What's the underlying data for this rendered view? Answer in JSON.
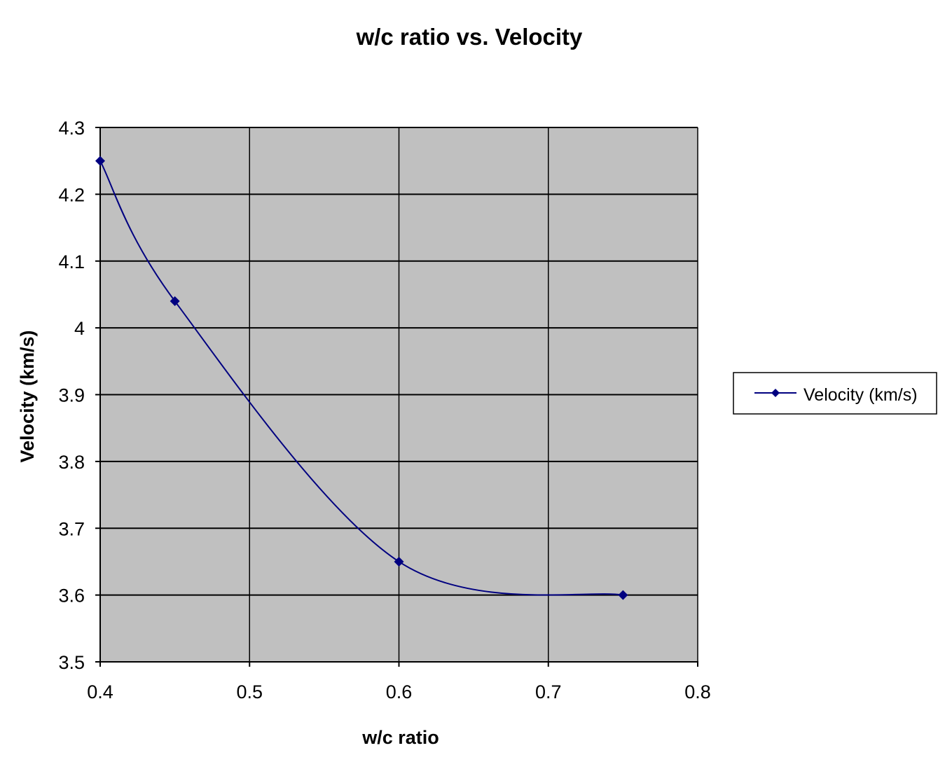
{
  "chart_data": {
    "type": "line",
    "title": "w/c ratio vs. Velocity",
    "xlabel": "w/c ratio",
    "ylabel": "Velocity (km/s)",
    "xlim": [
      0.4,
      0.8
    ],
    "ylim": [
      3.5,
      4.3
    ],
    "xticks": [
      0.4,
      0.5,
      0.6,
      0.7,
      0.8
    ],
    "yticks": [
      3.5,
      3.6,
      3.7,
      3.8,
      3.9,
      4,
      4.1,
      4.2,
      4.3
    ],
    "xtick_labels": [
      "0.4",
      "0.5",
      "0.6",
      "0.7",
      "0.8"
    ],
    "ytick_labels": [
      "3.5",
      "3.6",
      "3.7",
      "3.8",
      "3.9",
      "4",
      "4.1",
      "4.2",
      "4.3"
    ],
    "grid": true,
    "smoothed": true,
    "legend_position": "right",
    "plot_background": "#c0c0c0",
    "series": [
      {
        "name": "Velocity (km/s)",
        "color": "#000080",
        "marker": "diamond",
        "x": [
          0.4,
          0.45,
          0.6,
          0.75
        ],
        "y": [
          4.25,
          4.04,
          3.65,
          3.6
        ]
      }
    ]
  }
}
